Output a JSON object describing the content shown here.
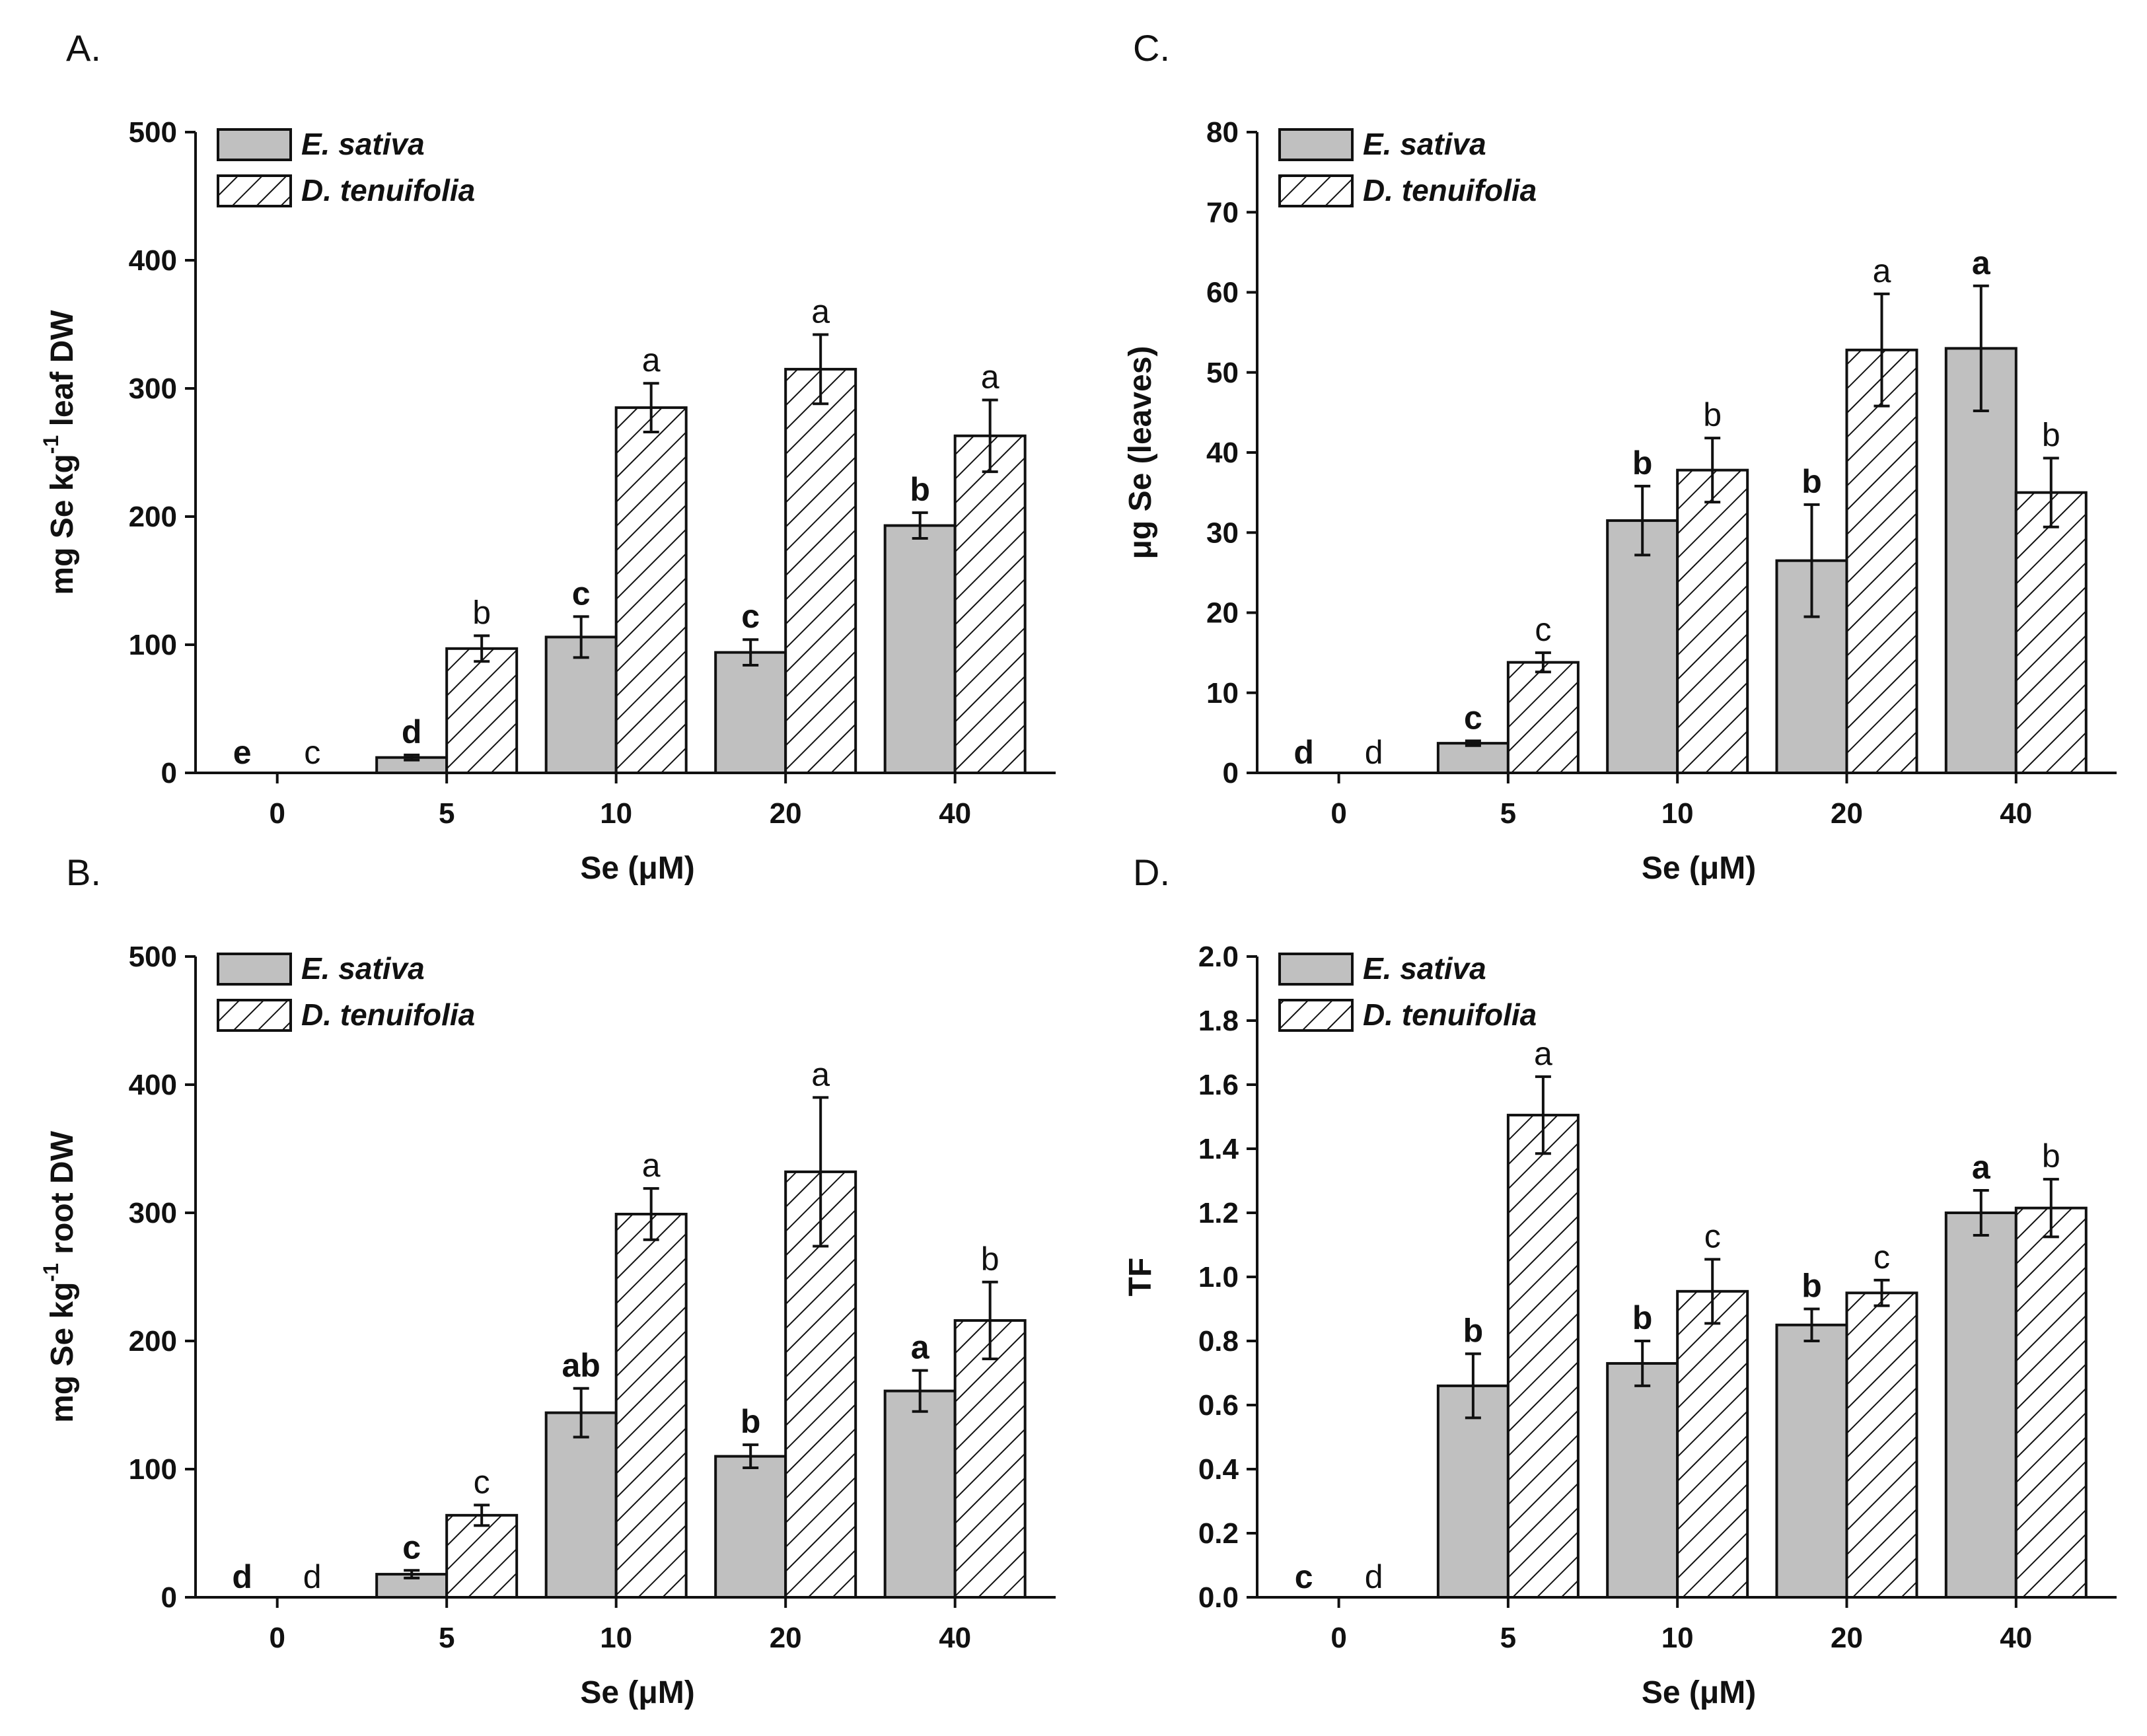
{
  "figure": {
    "legend": {
      "series_a": "E. sativa",
      "series_b": "D. tenuifolia"
    },
    "colors": {
      "series_a_fill": "#c0c0c0",
      "series_b_fill": "#ffffff",
      "ink": "#111111"
    }
  },
  "chart_data": [
    {
      "panel": "A.",
      "type": "bar",
      "categories": [
        "0",
        "5",
        "10",
        "20",
        "40"
      ],
      "xlabel": "Se (μM)",
      "ylabel_parts": [
        "mg Se kg",
        "-1",
        " leaf DW"
      ],
      "ylim": [
        0,
        500
      ],
      "yticks": [
        "0",
        "100",
        "200",
        "300",
        "400",
        "500"
      ],
      "ytick_values": [
        0,
        100,
        200,
        300,
        400,
        500
      ],
      "series": [
        {
          "name": "E. sativa",
          "values": [
            0,
            12,
            106,
            94,
            193
          ],
          "errors": [
            0,
            2,
            16,
            10,
            10
          ],
          "letters": [
            "e",
            "d",
            "c",
            "c",
            "b"
          ]
        },
        {
          "name": "D. tenuifolia",
          "values": [
            0,
            97,
            285,
            315,
            263
          ],
          "errors": [
            0,
            10,
            19,
            27,
            28
          ],
          "letters": [
            "c",
            "b",
            "a",
            "a",
            "a"
          ]
        }
      ]
    },
    {
      "panel": "C.",
      "type": "bar",
      "categories": [
        "0",
        "5",
        "10",
        "20",
        "40"
      ],
      "xlabel": "Se (μM)",
      "ylabel_parts": [
        "μg Se (leaves)",
        "",
        ""
      ],
      "ylim": [
        0,
        80
      ],
      "yticks": [
        "0",
        "10",
        "20",
        "30",
        "40",
        "50",
        "60",
        "70",
        "80"
      ],
      "ytick_values": [
        0,
        10,
        20,
        30,
        40,
        50,
        60,
        70,
        80
      ],
      "series": [
        {
          "name": "E. sativa",
          "values": [
            0,
            3.7,
            31.5,
            26.5,
            53
          ],
          "errors": [
            0,
            0.3,
            4.3,
            7,
            7.8
          ],
          "letters": [
            "d",
            "c",
            "b",
            "b",
            "a"
          ]
        },
        {
          "name": "D. tenuifolia",
          "values": [
            0,
            13.8,
            37.8,
            52.8,
            35
          ],
          "errors": [
            0,
            1.2,
            4,
            7,
            4.3
          ],
          "letters": [
            "d",
            "c",
            "b",
            "a",
            "b"
          ]
        }
      ]
    },
    {
      "panel": "B.",
      "type": "bar",
      "categories": [
        "0",
        "5",
        "10",
        "20",
        "40"
      ],
      "xlabel": "Se (μM)",
      "ylabel_parts": [
        "mg Se kg",
        "-1",
        " root DW"
      ],
      "ylim": [
        0,
        500
      ],
      "yticks": [
        "0",
        "100",
        "200",
        "300",
        "400",
        "500"
      ],
      "ytick_values": [
        0,
        100,
        200,
        300,
        400,
        500
      ],
      "series": [
        {
          "name": "E. sativa",
          "values": [
            0,
            18,
            144,
            110,
            161
          ],
          "errors": [
            0,
            3,
            19,
            9,
            16
          ],
          "letters": [
            "d",
            "c",
            "ab",
            "b",
            "a"
          ]
        },
        {
          "name": "D. tenuifolia",
          "values": [
            0,
            64,
            299,
            332,
            216
          ],
          "errors": [
            0,
            8,
            20,
            58,
            30
          ],
          "letters": [
            "d",
            "c",
            "a",
            "a",
            "b"
          ]
        }
      ]
    },
    {
      "panel": "D.",
      "type": "bar",
      "categories": [
        "0",
        "5",
        "10",
        "20",
        "40"
      ],
      "xlabel": "Se (μM)",
      "ylabel_parts": [
        "TF",
        "",
        ""
      ],
      "ylim": [
        0,
        2.0
      ],
      "yticks": [
        "0.0",
        "0.2",
        "0.4",
        "0.6",
        "0.8",
        "1.0",
        "1.2",
        "1.4",
        "1.6",
        "1.8",
        "2.0"
      ],
      "ytick_values": [
        0,
        0.2,
        0.4,
        0.6,
        0.8,
        1.0,
        1.2,
        1.4,
        1.6,
        1.8,
        2.0
      ],
      "series": [
        {
          "name": "E. sativa",
          "values": [
            0,
            0.66,
            0.73,
            0.85,
            1.2
          ],
          "errors": [
            0,
            0.1,
            0.07,
            0.05,
            0.07
          ],
          "letters": [
            "c",
            "b",
            "b",
            "b",
            "a"
          ]
        },
        {
          "name": "D. tenuifolia",
          "values": [
            0,
            1.505,
            0.955,
            0.95,
            1.215
          ],
          "errors": [
            0,
            0.12,
            0.1,
            0.04,
            0.09
          ],
          "letters": [
            "d",
            "a",
            "c",
            "c",
            "b"
          ]
        }
      ]
    }
  ]
}
